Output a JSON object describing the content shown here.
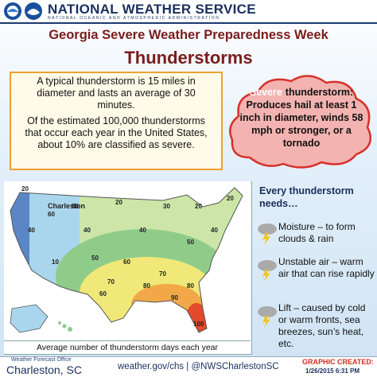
{
  "header": {
    "agency": "NATIONAL WEATHER SERVICE",
    "subagency": "NATIONAL OCEANIC AND ATMOSPHERIC ADMINISTRATION"
  },
  "title": {
    "line1": "Georgia Severe Weather Preparedness Week",
    "line2": "Thunderstorms"
  },
  "facts": [
    "A typical thunderstorm is 15 miles in diameter and lasts an average of 30 minutes.",
    "Of the estimated 100,000 thunderstorms that occur each year in the United States, about 10% are classified as severe."
  ],
  "severe": {
    "highlight": "Severe",
    "text": "thunderstorm: Produces hail at least 1 inch in diameter, winds 58 mph or stronger, or a tornado"
  },
  "map": {
    "city": "Charleston",
    "contour_labels": [
      "20",
      "40",
      "60",
      "50",
      "40",
      "10",
      "20",
      "30",
      "20",
      "40",
      "50",
      "60",
      "70",
      "80",
      "90",
      "100",
      "20",
      "50",
      "60",
      "70",
      "80",
      "40"
    ],
    "caption": "Average number of thunderstorm days each year"
  },
  "needs": {
    "heading": "Every thunderstorm needs…",
    "items": [
      "Moisture – to form clouds & rain",
      "Unstable air – warm air that can rise rapidly",
      "Lift – caused by cold or warm fronts, sea breezes, sun’s heat, etc."
    ]
  },
  "footer": {
    "office_label": "Weather Forecast Office",
    "office": "Charleston, SC",
    "links": "weather.gov/chs | @NWSCharlestonSC",
    "created_label": "GRAPHIC CREATED:",
    "created": "1/26/2015 6:31 PM"
  }
}
